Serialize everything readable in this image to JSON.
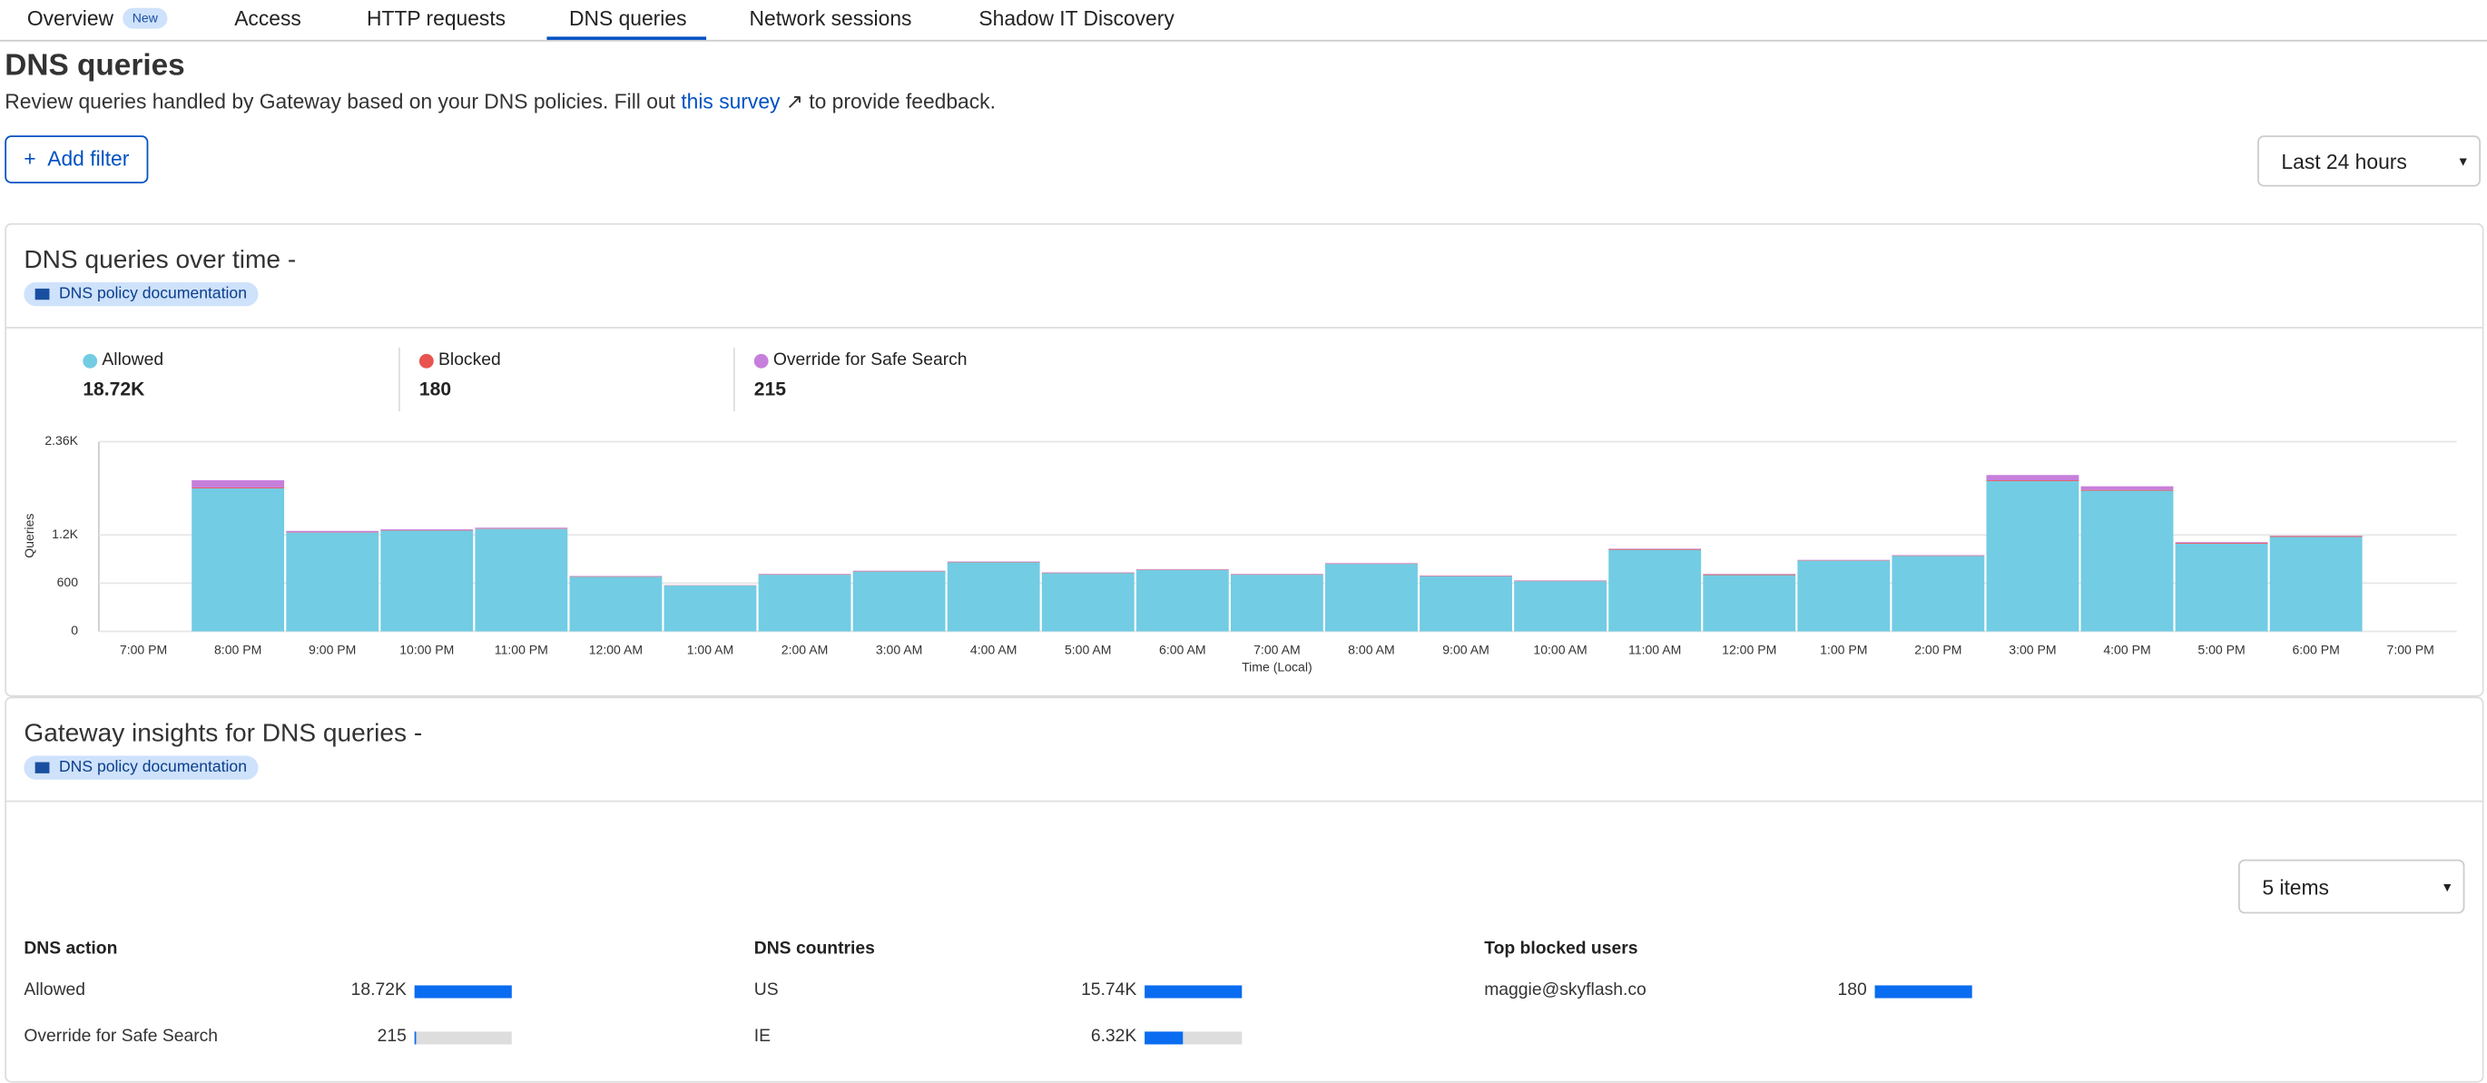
{
  "tabs": [
    {
      "label": "Overview",
      "badge": "New"
    },
    {
      "label": "Access"
    },
    {
      "label": "HTTP requests"
    },
    {
      "label": "DNS queries"
    },
    {
      "label": "Network sessions"
    },
    {
      "label": "Shadow IT Discovery"
    }
  ],
  "header": {
    "title": "DNS queries",
    "description": "Review queries handled by Gateway based on your DNS policies. Fill out",
    "link": "this survey",
    "description_end": "to provide feedback.",
    "add_filter": "Add filter",
    "time_range": "Last 24 hours"
  },
  "chart_data": {
    "type": "bar",
    "stacked": true,
    "title": "DNS queries over time",
    "dash": "-",
    "doc_link": "DNS policy documentation",
    "stats": [
      {
        "name": "Allowed",
        "value": "18.72K"
      },
      {
        "name": "Blocked",
        "value": "180"
      },
      {
        "name": "Override for Safe Search",
        "value": "215"
      }
    ],
    "ylabel": "Queries",
    "xlabel": "Time (Local)",
    "categories": [
      "7:00 PM",
      "8:00 PM",
      "9:00 PM",
      "10:00 PM",
      "11:00 PM",
      "12:00 AM",
      "1:00 AM",
      "2:00 AM",
      "3:00 AM",
      "4:00 AM",
      "5:00 AM",
      "6:00 AM",
      "7:00 AM",
      "8:00 AM",
      "9:00 AM",
      "10:00 AM",
      "11:00 AM",
      "12:00 PM",
      "1:00 PM",
      "2:00 PM",
      "3:00 PM",
      "4:00 PM",
      "5:00 PM",
      "6:00 PM",
      "7:00 PM"
    ],
    "series": [
      {
        "name": "Allowed",
        "color": "#72cce4",
        "values": [
          null,
          1780,
          1230,
          1255,
          1275,
          680,
          570,
          705,
          745,
          860,
          725,
          765,
          705,
          840,
          685,
          625,
          1015,
          700,
          880,
          940,
          1870,
          1750,
          1090,
          1175,
          null
        ]
      },
      {
        "name": "Blocked",
        "color": "#e8534f",
        "values": [
          null,
          10,
          5,
          5,
          5,
          5,
          3,
          5,
          5,
          5,
          5,
          5,
          5,
          5,
          5,
          5,
          10,
          10,
          5,
          5,
          10,
          10,
          10,
          10,
          null
        ]
      },
      {
        "name": "Override for Safe Search",
        "color": "#c77fdc",
        "values": [
          null,
          90,
          15,
          10,
          10,
          5,
          2,
          5,
          5,
          5,
          5,
          5,
          5,
          5,
          5,
          5,
          5,
          5,
          5,
          5,
          65,
          45,
          10,
          5,
          null
        ]
      }
    ],
    "ylim": [
      0,
      2360
    ],
    "yticks": [
      0,
      600,
      {
        "value": 1200,
        "label": "1.2K"
      },
      {
        "value": 2360,
        "label": "2.36K"
      }
    ],
    "grid": true
  },
  "insights": {
    "title": "Gateway insights for DNS queries",
    "dash": "-",
    "doc_link": "DNS policy documentation",
    "items": "5 items",
    "groups": [
      {
        "title": "DNS action",
        "rows": [
          {
            "label": "Allowed",
            "value": 18720,
            "value_label": "18.72K"
          },
          {
            "label": "Override for Safe Search",
            "value": 215
          }
        ]
      },
      {
        "title": "DNS countries",
        "rows": [
          {
            "label": "US",
            "value": 15740,
            "value_label": "15.74K"
          },
          {
            "label": "IE",
            "value": 6320,
            "value_label": "6.32K"
          }
        ]
      },
      {
        "title": "Top blocked users",
        "rows": [
          {
            "label": "maggie@skyflash.co",
            "value": 180
          }
        ]
      }
    ]
  }
}
